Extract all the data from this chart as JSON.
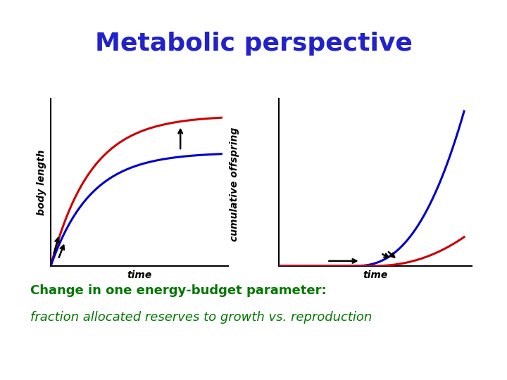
{
  "title": "Metabolic perspective",
  "title_color": "#2222cc",
  "title_bg_color": "#ffffaa",
  "bg_color": "#ffffff",
  "subtitle_line1": "Change in one energy-budget parameter:",
  "subtitle_line2": "fraction allocated reserves to growth vs. reproduction",
  "subtitle_color1": "#007700",
  "subtitle_color2": "#007700",
  "left_ylabel": "body length",
  "left_xlabel": "time",
  "right_ylabel": "cumulative offspring",
  "right_xlabel": "time",
  "red_color": "#cc0000",
  "blue_color": "#0000cc",
  "title_fontsize": 26,
  "subtitle1_fontsize": 13,
  "subtitle2_fontsize": 13,
  "axis_label_fontsize": 10
}
